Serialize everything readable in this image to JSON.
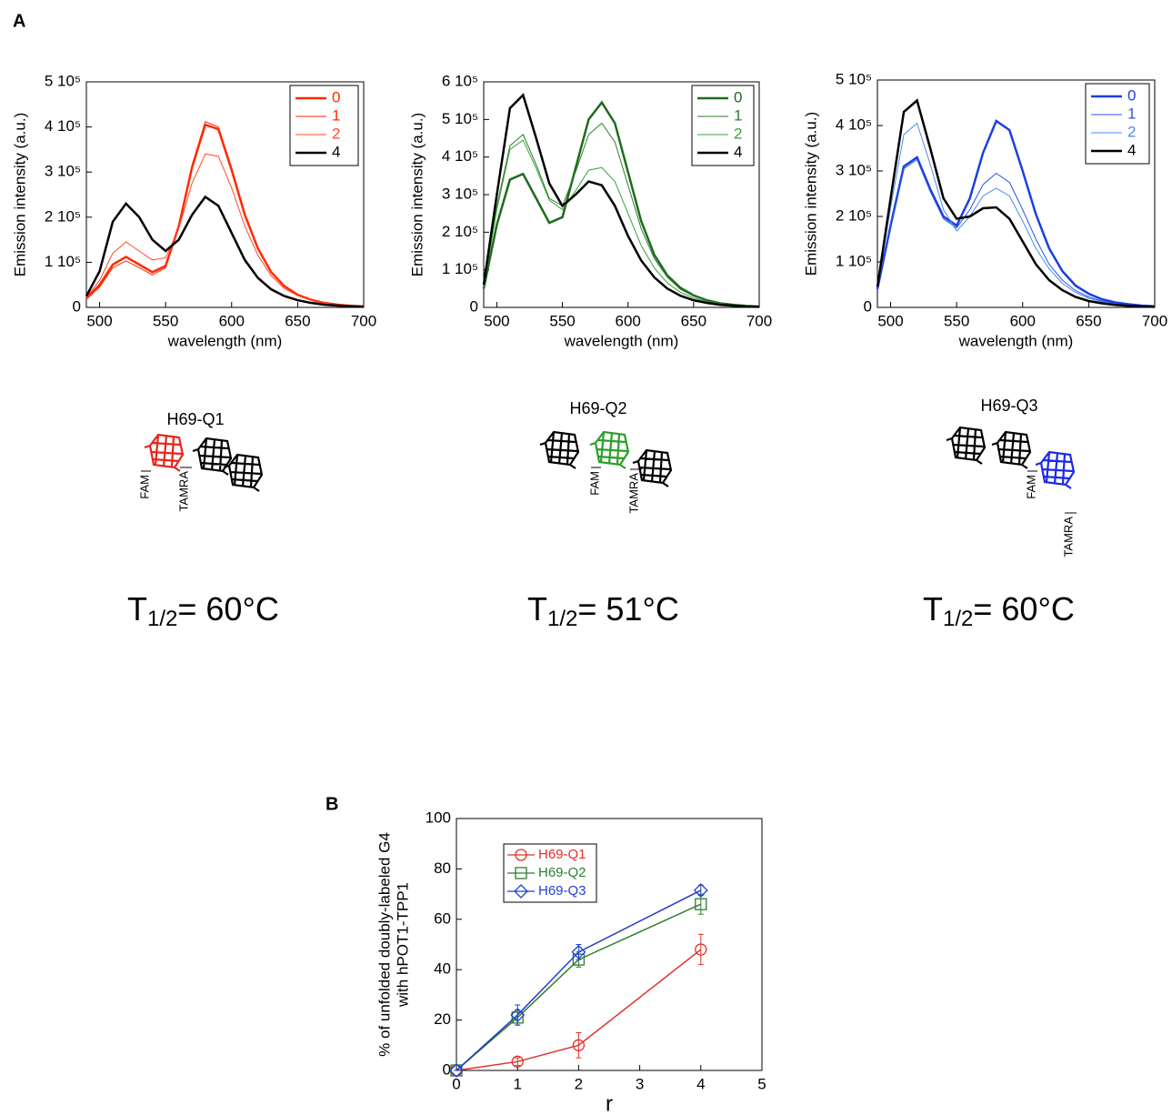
{
  "panel_labels": [
    "A",
    "B"
  ],
  "diagrams": [
    {
      "title": "H69-Q1",
      "donor": "FAM",
      "acceptor": "TAMRA",
      "t_symbol": "T",
      "t_sub": "1/2",
      "t_text": "= 60°C"
    },
    {
      "title": "H69-Q2",
      "donor": "FAM",
      "acceptor": "TAMRA",
      "t_symbol": "T",
      "t_sub": "1/2",
      "t_text": "= 51°C"
    },
    {
      "title": "H69-Q3",
      "donor": "FAM",
      "acceptor": "TAMRA",
      "t_symbol": "T",
      "t_sub": "1/2",
      "t_text": "= 60°C"
    }
  ],
  "chart_data": [
    {
      "type": "line",
      "xlabel": "wavelength (nm)",
      "ylabel": "Emission intensity (a.u.)",
      "x": [
        490,
        500,
        510,
        520,
        530,
        540,
        550,
        560,
        570,
        580,
        590,
        600,
        610,
        620,
        630,
        640,
        650,
        660,
        670,
        680,
        690,
        700
      ],
      "xlim": [
        490,
        700
      ],
      "xticks": [
        500,
        550,
        600,
        650,
        700
      ],
      "ylim": [
        0,
        500000
      ],
      "yticks": [
        0,
        {
          "value": 100000,
          "label": "1 10⁵"
        },
        {
          "value": 200000,
          "label": "2 10⁵"
        },
        {
          "value": 300000,
          "label": "3 10⁵"
        },
        {
          "value": 400000,
          "label": "4 10⁵"
        },
        {
          "value": 500000,
          "label": "5 10⁵"
        }
      ],
      "legend": "top-right",
      "series": [
        {
          "name": "0",
          "color": "#ff2a00",
          "line_width": 2.5,
          "values": [
            20000,
            50000,
            95000,
            112000,
            95000,
            78000,
            92000,
            180000,
            310000,
            405000,
            395000,
            305000,
            205000,
            130000,
            78000,
            47000,
            28000,
            17000,
            10000,
            6000,
            3500,
            2000
          ]
        },
        {
          "name": "1",
          "color": "#ff2a00",
          "line_width": 1,
          "values": [
            18000,
            45000,
            88000,
            103000,
            88000,
            72000,
            88000,
            180000,
            315000,
            412000,
            400000,
            310000,
            208000,
            130000,
            78000,
            47000,
            28000,
            17000,
            10000,
            6000,
            3500,
            2000
          ]
        },
        {
          "name": "2",
          "color": "#ff4a2a",
          "line_width": 1,
          "values": [
            22000,
            60000,
            120000,
            145000,
            125000,
            105000,
            110000,
            175000,
            275000,
            340000,
            335000,
            265000,
            180000,
            115000,
            70000,
            42000,
            26000,
            16000,
            9500,
            6000,
            3500,
            2000
          ]
        },
        {
          "name": "4",
          "color": "#000000",
          "line_width": 2.5,
          "values": [
            25000,
            80000,
            190000,
            230000,
            200000,
            150000,
            125000,
            150000,
            205000,
            245000,
            225000,
            165000,
            105000,
            65000,
            40000,
            25000,
            16000,
            10000,
            6000,
            4000,
            2500,
            1500
          ]
        }
      ]
    },
    {
      "type": "line",
      "xlabel": "wavelength (nm)",
      "ylabel": "Emission intensity (a.u.)",
      "x": [
        490,
        500,
        510,
        520,
        530,
        540,
        550,
        560,
        570,
        580,
        590,
        600,
        610,
        620,
        630,
        640,
        650,
        660,
        670,
        680,
        690,
        700
      ],
      "xlim": [
        490,
        700
      ],
      "xticks": [
        500,
        550,
        600,
        650,
        700
      ],
      "ylim": [
        0,
        600000
      ],
      "yticks": [
        0,
        {
          "value": 100000,
          "label": "1 10⁵"
        },
        {
          "value": 200000,
          "label": "2 10⁵"
        },
        {
          "value": 300000,
          "label": "3 10⁵"
        },
        {
          "value": 400000,
          "label": "4 10⁵"
        },
        {
          "value": 500000,
          "label": "5 10⁵"
        },
        {
          "value": 600000,
          "label": "6 10⁵"
        }
      ],
      "legend": "top-right",
      "series": [
        {
          "name": "0",
          "color": "#1f6b1f",
          "line_width": 2.5,
          "values": [
            50000,
            220000,
            340000,
            355000,
            290000,
            225000,
            240000,
            370000,
            500000,
            545000,
            490000,
            360000,
            230000,
            140000,
            85000,
            52000,
            32000,
            19000,
            11000,
            7000,
            4000,
            2500
          ]
        },
        {
          "name": "1",
          "color": "#2e7d2e",
          "line_width": 1,
          "values": [
            55000,
            270000,
            430000,
            460000,
            380000,
            290000,
            270000,
            360000,
            460000,
            490000,
            440000,
            325000,
            210000,
            130000,
            80000,
            48000,
            30000,
            18000,
            11000,
            7000,
            4000,
            2500
          ]
        },
        {
          "name": "2",
          "color": "#3aa03a",
          "line_width": 1,
          "values": [
            55000,
            260000,
            420000,
            445000,
            370000,
            285000,
            260000,
            310000,
            365000,
            372000,
            335000,
            250000,
            165000,
            105000,
            65000,
            40000,
            25000,
            15000,
            9000,
            6000,
            3500,
            2000
          ]
        },
        {
          "name": "4",
          "color": "#000000",
          "line_width": 2.5,
          "values": [
            60000,
            300000,
            530000,
            565000,
            450000,
            330000,
            270000,
            300000,
            335000,
            325000,
            270000,
            190000,
            125000,
            80000,
            50000,
            31000,
            19000,
            12000,
            7000,
            4500,
            2500,
            1500
          ]
        }
      ]
    },
    {
      "type": "line",
      "xlabel": "wavelength (nm)",
      "ylabel": "Emission intensity (a.u.)",
      "x": [
        490,
        500,
        510,
        520,
        530,
        540,
        550,
        560,
        570,
        580,
        590,
        600,
        610,
        620,
        630,
        640,
        650,
        660,
        670,
        680,
        690,
        700
      ],
      "xlim": [
        490,
        700
      ],
      "xticks": [
        500,
        550,
        600,
        650,
        700
      ],
      "ylim": [
        0,
        500000
      ],
      "yticks": [
        0,
        {
          "value": 100000,
          "label": "1 10⁵"
        },
        {
          "value": 200000,
          "label": "2 10⁵"
        },
        {
          "value": 300000,
          "label": "3 10⁵"
        },
        {
          "value": 400000,
          "label": "4 10⁵"
        },
        {
          "value": 500000,
          "label": "5 10⁵"
        }
      ],
      "legend": "top-right",
      "series": [
        {
          "name": "0",
          "color": "#1a3fe0",
          "line_width": 2.5,
          "values": [
            40000,
            180000,
            310000,
            330000,
            260000,
            200000,
            180000,
            240000,
            340000,
            410000,
            390000,
            300000,
            205000,
            130000,
            80000,
            48000,
            30000,
            18000,
            11000,
            7000,
            4000,
            2500
          ]
        },
        {
          "name": "1",
          "color": "#2a55e8",
          "line_width": 1,
          "values": [
            40000,
            180000,
            305000,
            325000,
            255000,
            195000,
            175000,
            215000,
            270000,
            295000,
            275000,
            215000,
            150000,
            95000,
            60000,
            37000,
            23000,
            14000,
            8500,
            5000,
            3000,
            2000
          ]
        },
        {
          "name": "2",
          "color": "#4a8af0",
          "line_width": 1,
          "values": [
            45000,
            220000,
            380000,
            405000,
            315000,
            215000,
            168000,
            200000,
            245000,
            262000,
            245000,
            190000,
            130000,
            85000,
            53000,
            33000,
            20000,
            12000,
            7500,
            4500,
            2700,
            1800
          ]
        },
        {
          "name": "4",
          "color": "#000000",
          "line_width": 2.5,
          "values": [
            45000,
            240000,
            430000,
            455000,
            350000,
            240000,
            195000,
            200000,
            218000,
            220000,
            195000,
            145000,
            95000,
            60000,
            38000,
            23000,
            14000,
            9000,
            5500,
            3500,
            2000,
            1200
          ]
        }
      ]
    },
    {
      "type": "errorline",
      "xlabel": "r",
      "ylabel": [
        "% of unfolded doubly-labeled G4",
        "with hPOT1-TPP1"
      ],
      "x": [
        0,
        1,
        2,
        4
      ],
      "xlim": [
        0,
        5
      ],
      "xticks": [
        0,
        1,
        2,
        3,
        4,
        5
      ],
      "ylim": [
        0,
        100
      ],
      "yticks": [
        0,
        20,
        40,
        60,
        80,
        100
      ],
      "legend": "top-left",
      "series": [
        {
          "name": "H69-Q1",
          "color": "#e0302a",
          "marker": "circle",
          "values": [
            0,
            3.5,
            10,
            48
          ],
          "errors": [
            0,
            1.5,
            5,
            6
          ]
        },
        {
          "name": "H69-Q2",
          "color": "#2e7d2e",
          "marker": "square",
          "values": [
            0,
            21,
            44,
            66
          ],
          "errors": [
            0,
            3,
            3,
            4
          ]
        },
        {
          "name": "H69-Q3",
          "color": "#1f3fd0",
          "marker": "diamond",
          "values": [
            0,
            22,
            47,
            71.5
          ],
          "errors": [
            0,
            4,
            3,
            2
          ]
        }
      ]
    }
  ]
}
